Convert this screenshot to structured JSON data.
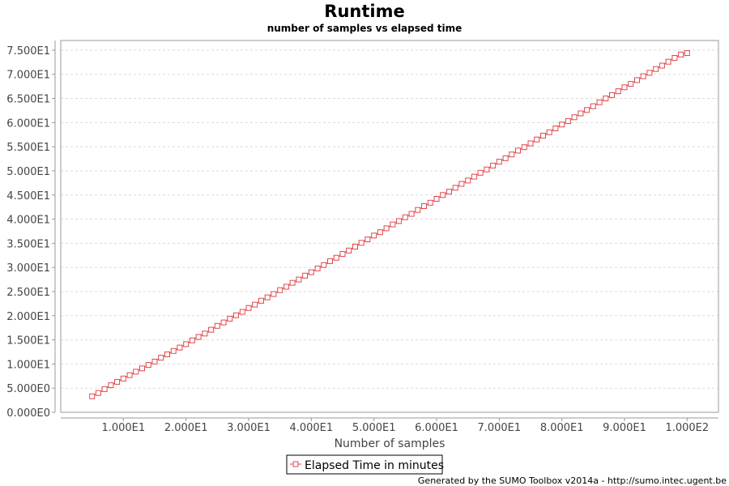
{
  "chart_data": {
    "type": "line",
    "title": "Runtime",
    "subtitle": "number of samples vs elapsed time",
    "xlabel": "Number of samples",
    "ylabel": "",
    "xlim": [
      0,
      105
    ],
    "ylim": [
      0,
      77
    ],
    "x_ticks": [
      10,
      20,
      30,
      40,
      50,
      60,
      70,
      80,
      90,
      100
    ],
    "x_tick_labels": [
      "1.000E1",
      "2.000E1",
      "3.000E1",
      "4.000E1",
      "5.000E1",
      "6.000E1",
      "7.000E1",
      "8.000E1",
      "9.000E1",
      "1.000E2"
    ],
    "y_ticks": [
      0,
      5,
      10,
      15,
      20,
      25,
      30,
      35,
      40,
      45,
      50,
      55,
      60,
      65,
      70,
      75
    ],
    "y_tick_labels": [
      "0.000E0",
      "5.000E0",
      "1.000E1",
      "1.500E1",
      "2.000E1",
      "2.500E1",
      "3.000E1",
      "3.500E1",
      "4.000E1",
      "4.500E1",
      "5.000E1",
      "5.500E1",
      "6.000E1",
      "6.500E1",
      "7.000E1",
      "7.500E1"
    ],
    "grid": true,
    "legend_position": "bottom",
    "series": [
      {
        "name": "Elapsed Time in minutes",
        "color": "#e0474c",
        "marker": "square-open",
        "x": [
          5,
          6,
          7,
          8,
          9,
          10,
          11,
          12,
          13,
          14,
          15,
          16,
          17,
          18,
          19,
          20,
          21,
          22,
          23,
          24,
          25,
          26,
          27,
          28,
          29,
          30,
          31,
          32,
          33,
          34,
          35,
          36,
          37,
          38,
          39,
          40,
          41,
          42,
          43,
          44,
          45,
          46,
          47,
          48,
          49,
          50,
          51,
          52,
          53,
          54,
          55,
          56,
          57,
          58,
          59,
          60,
          61,
          62,
          63,
          64,
          65,
          66,
          67,
          68,
          69,
          70,
          71,
          72,
          73,
          74,
          75,
          76,
          77,
          78,
          79,
          80,
          81,
          82,
          83,
          84,
          85,
          86,
          87,
          88,
          89,
          90,
          91,
          92,
          93,
          94,
          95,
          96,
          97,
          98,
          99,
          100
        ],
        "y": [
          3.3,
          4.0,
          4.8,
          5.6,
          6.3,
          7.0,
          7.7,
          8.4,
          9.1,
          9.8,
          10.5,
          11.3,
          12.0,
          12.7,
          13.4,
          14.1,
          14.9,
          15.6,
          16.3,
          17.1,
          17.9,
          18.6,
          19.4,
          20.1,
          20.8,
          21.6,
          22.3,
          23.1,
          23.8,
          24.5,
          25.3,
          26.0,
          26.8,
          27.5,
          28.3,
          29.0,
          29.8,
          30.5,
          31.3,
          32.0,
          32.8,
          33.5,
          34.3,
          35.1,
          35.8,
          36.6,
          37.3,
          38.1,
          38.9,
          39.6,
          40.4,
          41.1,
          41.9,
          42.7,
          43.4,
          44.2,
          45.0,
          45.7,
          46.5,
          47.3,
          48.0,
          48.8,
          49.6,
          50.3,
          51.1,
          51.9,
          52.6,
          53.4,
          54.2,
          54.9,
          55.7,
          56.5,
          57.3,
          58.0,
          58.8,
          59.6,
          60.3,
          61.1,
          61.9,
          62.6,
          63.4,
          64.2,
          65.0,
          65.7,
          66.5,
          67.3,
          68.0,
          68.8,
          69.6,
          70.3,
          71.1,
          71.8,
          72.6,
          73.4,
          74.1,
          74.4
        ]
      }
    ]
  },
  "footer": "Generated by the SUMO Toolbox v2014a - http://sumo.intec.ugent.be"
}
